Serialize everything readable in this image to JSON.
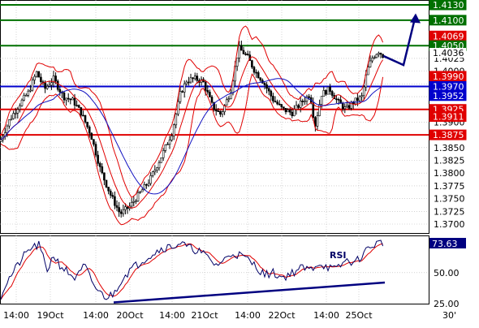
{
  "colors": {
    "background": "#ffffff",
    "frame": "#000000",
    "grid": "#b8b8b8",
    "candles": "#000000",
    "bollinger": "#e00000",
    "moving_average": "#1010c0",
    "level_red": "#e00000",
    "level_blue": "#0000cc",
    "level_green": "#007000",
    "rsi_line": "#000066",
    "rsi_signal": "#e00000",
    "trendline": "#000080",
    "arrow": "#000080",
    "label_text_light": "#ffffff",
    "label_text_dark": "#000000"
  },
  "chart_data": [
    {
      "type": "candlestick",
      "title": "",
      "xlabel": "",
      "ylabel": "",
      "ylim": [
        1.3675,
        1.4135
      ],
      "grid": true,
      "x_tick_labels": [
        "14:00",
        "19Oct",
        "14:00",
        "20Oct",
        "14:00",
        "21Oct",
        "14:00",
        "22Oct",
        "14:00",
        "25Oct",
        "30'"
      ],
      "y_tick_labels": [
        "1.4025",
        "1.4000",
        "1.3975",
        "1.3950",
        "1.3925",
        "1.3900",
        "1.3875",
        "1.3850",
        "1.3825",
        "1.3800",
        "1.3775",
        "1.3750",
        "1.3725",
        "1.3700"
      ],
      "price_anchors": [
        [
          0,
          1.3862
        ],
        [
          12,
          1.3905
        ],
        [
          24,
          1.3935
        ],
        [
          35,
          1.3958
        ],
        [
          45,
          1.3998
        ],
        [
          55,
          1.3965
        ],
        [
          66,
          1.3985
        ],
        [
          78,
          1.395
        ],
        [
          90,
          1.3942
        ],
        [
          100,
          1.3918
        ],
        [
          112,
          1.3875
        ],
        [
          124,
          1.3805
        ],
        [
          136,
          1.3758
        ],
        [
          148,
          1.372
        ],
        [
          160,
          1.3735
        ],
        [
          172,
          1.376
        ],
        [
          184,
          1.3785
        ],
        [
          198,
          1.383
        ],
        [
          212,
          1.388
        ],
        [
          222,
          1.3955
        ],
        [
          230,
          1.3982
        ],
        [
          240,
          1.3985
        ],
        [
          250,
          1.398
        ],
        [
          262,
          1.393
        ],
        [
          272,
          1.3915
        ],
        [
          284,
          1.396
        ],
        [
          294,
          1.4045
        ],
        [
          304,
          1.403
        ],
        [
          314,
          1.4
        ],
        [
          324,
          1.398
        ],
        [
          336,
          1.3945
        ],
        [
          348,
          1.3925
        ],
        [
          360,
          1.3918
        ],
        [
          372,
          1.394
        ],
        [
          382,
          1.3955
        ],
        [
          388,
          1.3892
        ],
        [
          396,
          1.3955
        ],
        [
          406,
          1.3965
        ],
        [
          416,
          1.394
        ],
        [
          426,
          1.3925
        ],
        [
          436,
          1.394
        ],
        [
          446,
          1.395
        ],
        [
          452,
          1.4
        ],
        [
          458,
          1.4025
        ],
        [
          466,
          1.404
        ],
        [
          472,
          1.403
        ]
      ],
      "levels": [
        {
          "value": 1.413,
          "label": "1.4130",
          "color": "green"
        },
        {
          "value": 1.41,
          "label": "1.4100",
          "color": "green"
        },
        {
          "value": 1.4069,
          "label": "1.4069",
          "color": "red"
        },
        {
          "value": 1.405,
          "label": "1.4050",
          "color": "green"
        },
        {
          "value": 1.4036,
          "label": "1.4036",
          "color": "current"
        },
        {
          "value": 1.399,
          "label": "1.3990",
          "color": "red"
        },
        {
          "value": 1.397,
          "label": "1.3970",
          "color": "blue"
        },
        {
          "value": 1.3952,
          "label": "1.3952",
          "color": "blue"
        },
        {
          "value": 1.3925,
          "label": "1.3925",
          "color": "red"
        },
        {
          "value": 1.3911,
          "label": "1.3911",
          "color": "red"
        },
        {
          "value": 1.3875,
          "label": "1.3875",
          "color": "red"
        }
      ],
      "drawn_levels": [
        1.413,
        1.41,
        1.405,
        1.397,
        1.3925,
        1.3875
      ],
      "forecast_path": [
        [
          472,
          1.403
        ],
        [
          497,
          1.4012
        ],
        [
          512,
          1.411
        ]
      ]
    },
    {
      "type": "line",
      "title": "",
      "indicator_label": "RSI",
      "current_value_label": "73.63",
      "ylim": [
        25,
        80
      ],
      "y_tick_labels": [
        "50.00",
        "25.00"
      ],
      "grid": true,
      "rsi_anchors": [
        [
          0,
          30
        ],
        [
          8,
          42
        ],
        [
          18,
          52
        ],
        [
          28,
          62
        ],
        [
          38,
          70
        ],
        [
          48,
          72
        ],
        [
          58,
          52
        ],
        [
          66,
          64
        ],
        [
          74,
          56
        ],
        [
          84,
          50
        ],
        [
          94,
          45
        ],
        [
          104,
          56
        ],
        [
          112,
          44
        ],
        [
          122,
          34
        ],
        [
          132,
          30
        ],
        [
          140,
          33
        ],
        [
          150,
          45
        ],
        [
          160,
          52
        ],
        [
          170,
          57
        ],
        [
          180,
          62
        ],
        [
          190,
          66
        ],
        [
          200,
          70
        ],
        [
          212,
          71
        ],
        [
          222,
          74
        ],
        [
          232,
          70
        ],
        [
          244,
          68
        ],
        [
          256,
          62
        ],
        [
          266,
          56
        ],
        [
          276,
          60
        ],
        [
          286,
          66
        ],
        [
          296,
          64
        ],
        [
          306,
          60
        ],
        [
          316,
          55
        ],
        [
          326,
          48
        ],
        [
          336,
          50
        ],
        [
          348,
          46
        ],
        [
          360,
          50
        ],
        [
          372,
          54
        ],
        [
          382,
          52
        ],
        [
          392,
          58
        ],
        [
          402,
          55
        ],
        [
          414,
          52
        ],
        [
          426,
          60
        ],
        [
          438,
          58
        ],
        [
          448,
          66
        ],
        [
          458,
          72
        ],
        [
          466,
          74
        ],
        [
          472,
          74
        ]
      ],
      "trendline": [
        [
          140,
          26
        ],
        [
          474,
          42
        ]
      ]
    }
  ]
}
